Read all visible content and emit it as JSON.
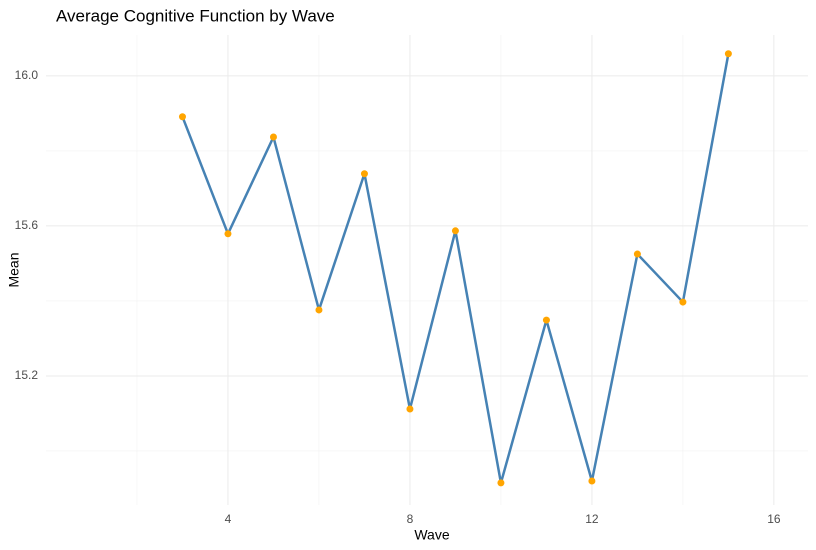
{
  "chart_data": {
    "type": "line",
    "title": "Average Cognitive Function by Wave",
    "x_label": "Wave",
    "y_label": "Mean",
    "x": [
      3,
      4,
      5,
      6,
      7,
      8,
      9,
      10,
      11,
      12,
      13,
      14,
      15
    ],
    "series": [
      {
        "line_color": "#4682b4",
        "point_color": "#ffa500",
        "values": [
          15.891,
          15.579,
          15.837,
          15.376,
          15.739,
          15.112,
          15.587,
          14.915,
          15.349,
          14.92,
          15.525,
          15.397,
          16.059
        ]
      }
    ],
    "xlim": [
      0,
      16.75
    ],
    "xticks": [
      4,
      8,
      12,
      16
    ],
    "x_minor_grid": [
      2,
      6,
      10,
      14
    ],
    "ylim": [
      14.856,
      16.109
    ],
    "yticks": [
      15.2,
      15.6,
      {
        "value": 16,
        "label": "16.0"
      }
    ],
    "y_minor_grid": [
      15.0,
      15.4,
      15.8
    ],
    "grid": true
  }
}
